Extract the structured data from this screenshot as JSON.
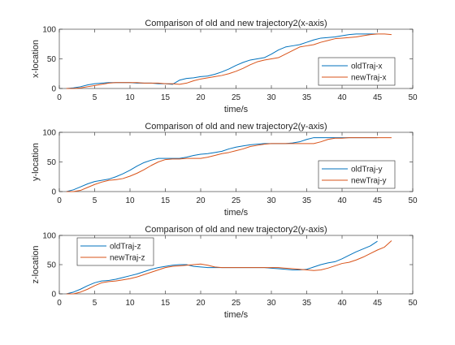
{
  "colors": {
    "old": "#0072BD",
    "new": "#D95319",
    "axis": "#262626",
    "background": "#ffffff"
  },
  "chart_data": [
    {
      "type": "line",
      "title": "Comparison of old and new trajectory2(x-axis)",
      "xlabel": "time/s",
      "ylabel": "x-location",
      "xlim": [
        0,
        50
      ],
      "ylim": [
        0,
        100
      ],
      "xticks": [
        0,
        5,
        10,
        15,
        20,
        25,
        30,
        35,
        40,
        45,
        50
      ],
      "yticks": [
        0,
        50,
        100
      ],
      "grid": false,
      "legend_position": "bottom-right",
      "series": [
        {
          "name": "oldTraj-x",
          "x": [
            1,
            2,
            3,
            4,
            5,
            6,
            7,
            8,
            9,
            10,
            11,
            12,
            13,
            14,
            15,
            16,
            17,
            18,
            19,
            20,
            21,
            22,
            23,
            24,
            25,
            26,
            27,
            28,
            29,
            30,
            31,
            32,
            33,
            34,
            35,
            36,
            37,
            38,
            39,
            40,
            41,
            42,
            43,
            44,
            45
          ],
          "y": [
            0,
            1,
            3,
            6,
            8,
            9,
            10,
            10,
            10,
            10,
            9,
            9,
            9,
            8,
            8,
            7,
            14,
            17,
            18,
            20,
            21,
            24,
            28,
            33,
            39,
            44,
            48,
            50,
            52,
            58,
            65,
            70,
            72,
            74,
            78,
            82,
            85,
            86,
            87,
            89,
            91,
            92,
            92,
            92,
            92
          ]
        },
        {
          "name": "newTraj-x",
          "x": [
            1,
            2,
            3,
            4,
            5,
            6,
            7,
            8,
            9,
            10,
            11,
            12,
            13,
            14,
            15,
            16,
            17,
            18,
            19,
            20,
            21,
            22,
            23,
            24,
            25,
            26,
            27,
            28,
            29,
            30,
            31,
            32,
            33,
            34,
            35,
            36,
            37,
            38,
            39,
            40,
            41,
            42,
            43,
            44,
            45,
            46,
            47
          ],
          "y": [
            0,
            0,
            1,
            3,
            5,
            7,
            9,
            10,
            10,
            10,
            10,
            9,
            9,
            9,
            8,
            8,
            7,
            9,
            13,
            16,
            18,
            20,
            22,
            25,
            29,
            34,
            40,
            45,
            48,
            50,
            52,
            58,
            64,
            70,
            72,
            74,
            78,
            81,
            84,
            85,
            86,
            87,
            89,
            91,
            92,
            92,
            91
          ]
        }
      ]
    },
    {
      "type": "line",
      "title": "Comparison of old and new trajectory2(y-axis)",
      "xlabel": "time/s",
      "ylabel": "y-location",
      "xlim": [
        0,
        50
      ],
      "ylim": [
        0,
        100
      ],
      "xticks": [
        0,
        5,
        10,
        15,
        20,
        25,
        30,
        35,
        40,
        45,
        50
      ],
      "yticks": [
        0,
        50,
        100
      ],
      "grid": false,
      "legend_position": "bottom-right",
      "series": [
        {
          "name": "oldTraj-y",
          "x": [
            1,
            2,
            3,
            4,
            5,
            6,
            7,
            8,
            9,
            10,
            11,
            12,
            13,
            14,
            15,
            16,
            17,
            18,
            19,
            20,
            21,
            22,
            23,
            24,
            25,
            26,
            27,
            28,
            29,
            30,
            31,
            32,
            33,
            34,
            35,
            36,
            37,
            38,
            39,
            40,
            41,
            42,
            43,
            44,
            45
          ],
          "y": [
            0,
            3,
            8,
            13,
            17,
            19,
            21,
            25,
            30,
            36,
            43,
            49,
            53,
            56,
            56,
            56,
            56,
            58,
            61,
            63,
            64,
            66,
            68,
            72,
            75,
            77,
            79,
            80,
            81,
            81,
            81,
            81,
            82,
            84,
            88,
            91,
            91,
            91,
            91,
            91,
            91,
            91,
            91,
            91,
            91
          ]
        },
        {
          "name": "newTraj-y",
          "x": [
            1,
            2,
            3,
            4,
            5,
            6,
            7,
            8,
            9,
            10,
            11,
            12,
            13,
            14,
            15,
            16,
            17,
            18,
            19,
            20,
            21,
            22,
            23,
            24,
            25,
            26,
            27,
            28,
            29,
            30,
            31,
            32,
            33,
            34,
            35,
            36,
            37,
            38,
            39,
            40,
            41,
            42,
            43,
            44,
            45,
            46,
            47
          ],
          "y": [
            0,
            0,
            2,
            7,
            12,
            16,
            19,
            20,
            22,
            26,
            31,
            37,
            44,
            50,
            54,
            55,
            55,
            56,
            56,
            56,
            58,
            61,
            64,
            66,
            69,
            72,
            76,
            78,
            80,
            81,
            81,
            81,
            81,
            81,
            81,
            81,
            84,
            88,
            90,
            90,
            91,
            91,
            91,
            91,
            91,
            91,
            91
          ]
        }
      ]
    },
    {
      "type": "line",
      "title": "Comparison of old and new trajectory2(y-axis)",
      "xlabel": "time/s",
      "ylabel": "z-location",
      "xlim": [
        0,
        50
      ],
      "ylim": [
        0,
        100
      ],
      "xticks": [
        0,
        5,
        10,
        15,
        20,
        25,
        30,
        35,
        40,
        45,
        50
      ],
      "yticks": [
        0,
        50,
        100
      ],
      "grid": false,
      "legend_position": "top-left",
      "series": [
        {
          "name": "oldTraj-z",
          "x": [
            1,
            2,
            3,
            4,
            5,
            6,
            7,
            8,
            9,
            10,
            11,
            12,
            13,
            14,
            15,
            16,
            17,
            18,
            19,
            20,
            21,
            22,
            23,
            24,
            25,
            26,
            27,
            28,
            29,
            30,
            31,
            32,
            33,
            34,
            35,
            36,
            37,
            38,
            39,
            40,
            41,
            42,
            43,
            44,
            45
          ],
          "y": [
            0,
            3,
            8,
            14,
            19,
            22,
            23,
            25,
            28,
            31,
            34,
            38,
            42,
            45,
            47,
            49,
            50,
            50,
            47,
            46,
            45,
            45,
            45,
            45,
            45,
            45,
            45,
            45,
            45,
            44,
            43,
            42,
            41,
            41,
            42,
            46,
            50,
            53,
            55,
            60,
            66,
            72,
            77,
            82,
            90
          ]
        },
        {
          "name": "newTraj-z",
          "x": [
            1,
            2,
            3,
            4,
            5,
            6,
            7,
            8,
            9,
            10,
            11,
            12,
            13,
            14,
            15,
            16,
            17,
            18,
            19,
            20,
            21,
            22,
            23,
            24,
            25,
            26,
            27,
            28,
            29,
            30,
            31,
            32,
            33,
            34,
            35,
            36,
            37,
            38,
            39,
            40,
            41,
            42,
            43,
            44,
            45,
            46,
            47
          ],
          "y": [
            0,
            0,
            3,
            8,
            14,
            19,
            21,
            22,
            24,
            26,
            29,
            33,
            37,
            41,
            45,
            47,
            48,
            49,
            50,
            51,
            49,
            46,
            45,
            45,
            45,
            45,
            45,
            45,
            45,
            45,
            45,
            44,
            43,
            42,
            41,
            40,
            41,
            44,
            48,
            52,
            54,
            58,
            63,
            69,
            75,
            80,
            91
          ]
        }
      ]
    }
  ]
}
